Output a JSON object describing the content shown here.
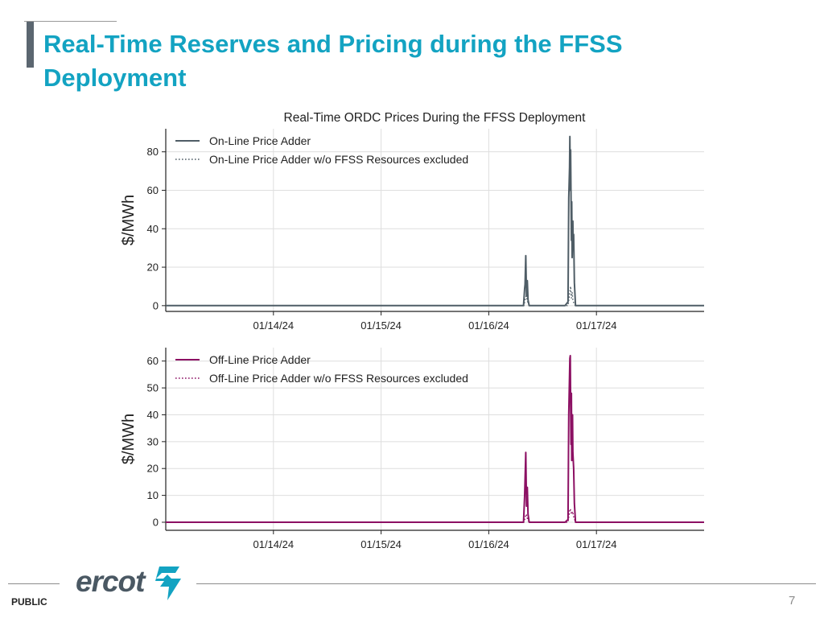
{
  "slide": {
    "title_line1": "Real-Time Reserves and Pricing during the FFSS",
    "title_line2": "Deployment",
    "footer_label": "PUBLIC",
    "logo_text": "ercot",
    "page_number": "7"
  },
  "colors": {
    "title": "#13a3c2",
    "online": "#4f5d66",
    "offline": "#8c1063"
  },
  "chart_data": [
    {
      "type": "line",
      "title": "Real-Time ORDC Prices During the FFSS Deployment",
      "ylabel": "$/MWh",
      "xlabel": "",
      "x_type": "date",
      "xlim": [
        "2024-01-13 00:00",
        "2024-01-18 00:00"
      ],
      "xticks": [
        "01/14/24",
        "01/15/24",
        "01/16/24",
        "01/17/24"
      ],
      "ylim": [
        -3,
        92
      ],
      "yticks": [
        0,
        20,
        40,
        60,
        80
      ],
      "grid": true,
      "legend_position": "top-left",
      "series": [
        {
          "name": "On-Line Price Adder",
          "style": "solid",
          "color": "#4f5d66",
          "points": [
            [
              "2024-01-13 00:00",
              0
            ],
            [
              "2024-01-16 07:45",
              0
            ],
            [
              "2024-01-16 08:00",
              9
            ],
            [
              "2024-01-16 08:05",
              11
            ],
            [
              "2024-01-16 08:15",
              26
            ],
            [
              "2024-01-16 08:25",
              5
            ],
            [
              "2024-01-16 08:35",
              13
            ],
            [
              "2024-01-16 08:45",
              3
            ],
            [
              "2024-01-16 09:00",
              0
            ],
            [
              "2024-01-16 17:00",
              0
            ],
            [
              "2024-01-16 17:40",
              2
            ],
            [
              "2024-01-16 17:50",
              56
            ],
            [
              "2024-01-16 18:00",
              72
            ],
            [
              "2024-01-16 18:05",
              88
            ],
            [
              "2024-01-16 18:10",
              60
            ],
            [
              "2024-01-16 18:15",
              81
            ],
            [
              "2024-01-16 18:25",
              34
            ],
            [
              "2024-01-16 18:30",
              54
            ],
            [
              "2024-01-16 18:35",
              25
            ],
            [
              "2024-01-16 18:45",
              44
            ],
            [
              "2024-01-16 18:50",
              30
            ],
            [
              "2024-01-16 18:55",
              37
            ],
            [
              "2024-01-16 19:05",
              12
            ],
            [
              "2024-01-16 19:20",
              0
            ],
            [
              "2024-01-18 00:00",
              0
            ]
          ]
        },
        {
          "name": "On-Line Price Adder w/o FFSS Resources excluded",
          "style": "dotted",
          "color": "#4f5d66",
          "points": [
            [
              "2024-01-13 00:00",
              0
            ],
            [
              "2024-01-16 07:50",
              0
            ],
            [
              "2024-01-16 08:05",
              3
            ],
            [
              "2024-01-16 08:20",
              5
            ],
            [
              "2024-01-16 08:40",
              2
            ],
            [
              "2024-01-16 09:00",
              0
            ],
            [
              "2024-01-16 17:40",
              0
            ],
            [
              "2024-01-16 18:05",
              7
            ],
            [
              "2024-01-16 18:15",
              10
            ],
            [
              "2024-01-16 18:25",
              4
            ],
            [
              "2024-01-16 18:35",
              7
            ],
            [
              "2024-01-16 18:45",
              3
            ],
            [
              "2024-01-16 19:00",
              1
            ],
            [
              "2024-01-16 19:20",
              0
            ],
            [
              "2024-01-18 00:00",
              0
            ]
          ]
        }
      ]
    },
    {
      "type": "line",
      "title": "",
      "ylabel": "$/MWh",
      "xlabel": "",
      "x_type": "date",
      "xlim": [
        "2024-01-13 00:00",
        "2024-01-18 00:00"
      ],
      "xticks": [
        "01/14/24",
        "01/15/24",
        "01/16/24",
        "01/17/24"
      ],
      "ylim": [
        -3,
        65
      ],
      "yticks": [
        0,
        10,
        20,
        30,
        40,
        50,
        60
      ],
      "grid": true,
      "legend_position": "top-left",
      "series": [
        {
          "name": "Off-Line Price Adder",
          "style": "solid",
          "color": "#8c1063",
          "points": [
            [
              "2024-01-13 00:00",
              0
            ],
            [
              "2024-01-16 07:45",
              0
            ],
            [
              "2024-01-16 08:00",
              10
            ],
            [
              "2024-01-16 08:15",
              26
            ],
            [
              "2024-01-16 08:25",
              6
            ],
            [
              "2024-01-16 08:35",
              13
            ],
            [
              "2024-01-16 08:45",
              3
            ],
            [
              "2024-01-16 09:00",
              0
            ],
            [
              "2024-01-16 17:00",
              0
            ],
            [
              "2024-01-16 17:40",
              1
            ],
            [
              "2024-01-16 17:50",
              40
            ],
            [
              "2024-01-16 18:00",
              55
            ],
            [
              "2024-01-16 18:05",
              61
            ],
            [
              "2024-01-16 18:10",
              62
            ],
            [
              "2024-01-16 18:15",
              45
            ],
            [
              "2024-01-16 18:20",
              29
            ],
            [
              "2024-01-16 18:25",
              48
            ],
            [
              "2024-01-16 18:30",
              23
            ],
            [
              "2024-01-16 18:40",
              40
            ],
            [
              "2024-01-16 18:45",
              26
            ],
            [
              "2024-01-16 18:55",
              20
            ],
            [
              "2024-01-16 19:05",
              7
            ],
            [
              "2024-01-16 19:20",
              0
            ],
            [
              "2024-01-18 00:00",
              0
            ]
          ]
        },
        {
          "name": "Off-Line Price Adder w/o FFSS Resources excluded",
          "style": "dotted",
          "color": "#8c1063",
          "points": [
            [
              "2024-01-13 00:00",
              0
            ],
            [
              "2024-01-16 07:50",
              0
            ],
            [
              "2024-01-16 08:10",
              2
            ],
            [
              "2024-01-16 08:20",
              3
            ],
            [
              "2024-01-16 08:40",
              1
            ],
            [
              "2024-01-16 09:00",
              0
            ],
            [
              "2024-01-16 17:40",
              0
            ],
            [
              "2024-01-16 18:00",
              4
            ],
            [
              "2024-01-16 18:10",
              5
            ],
            [
              "2024-01-16 18:25",
              3
            ],
            [
              "2024-01-16 18:40",
              4
            ],
            [
              "2024-01-16 18:55",
              2
            ],
            [
              "2024-01-16 19:20",
              0
            ],
            [
              "2024-01-18 00:00",
              0
            ]
          ]
        }
      ]
    }
  ]
}
